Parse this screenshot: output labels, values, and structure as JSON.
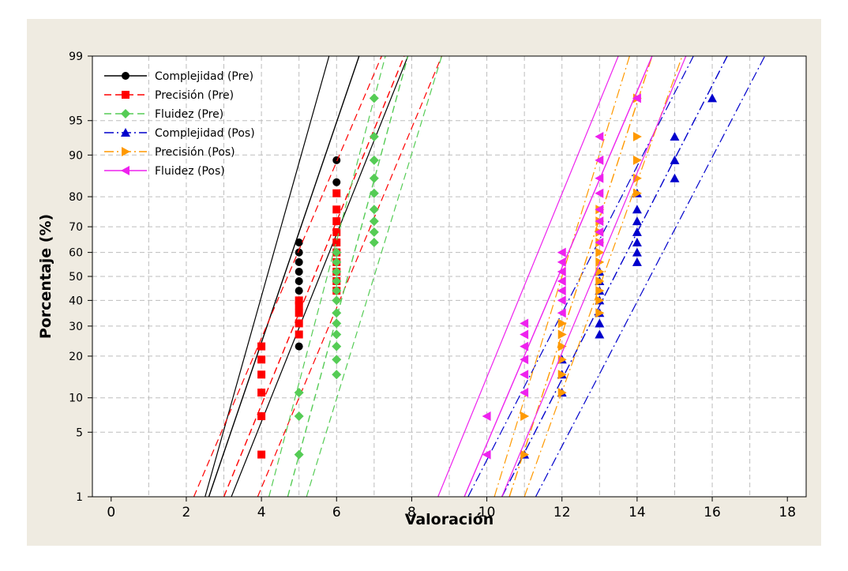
{
  "header": {
    "title": ""
  },
  "chart_data": {
    "type": "scatter",
    "title": "",
    "xlabel": "Valoración",
    "ylabel": "Porcentaje (%)",
    "xlim": [
      -0.5,
      18.5
    ],
    "x_ticks": [
      0,
      2,
      4,
      6,
      8,
      10,
      12,
      14,
      16,
      18
    ],
    "y_scale": "normal-probability",
    "ylim": [
      1,
      99
    ],
    "y_ticks": [
      1,
      5,
      10,
      20,
      30,
      40,
      50,
      60,
      70,
      80,
      90,
      95,
      99
    ],
    "grid": true,
    "legend_position": "top-left",
    "series": [
      {
        "name": "Complejidad (Pre)",
        "color": "#000000",
        "marker": "circle",
        "line": "solid",
        "points": [
          [
            5,
            23
          ],
          [
            5,
            44
          ],
          [
            5,
            48
          ],
          [
            5,
            52
          ],
          [
            5,
            56
          ],
          [
            5,
            60
          ],
          [
            5,
            64
          ],
          [
            6,
            84
          ],
          [
            6,
            89
          ]
        ],
        "fit": [
          [
            2.6,
            1
          ],
          [
            6.6,
            99
          ]
        ],
        "band_low": [
          [
            3.2,
            1
          ],
          [
            7.9,
            99
          ]
        ],
        "band_high": [
          [
            2.5,
            1
          ],
          [
            5.8,
            99
          ]
        ]
      },
      {
        "name": "Precisión (Pre)",
        "color": "#ff0000",
        "marker": "square",
        "line": "dashed",
        "points": [
          [
            4,
            3
          ],
          [
            4,
            7
          ],
          [
            4,
            11
          ],
          [
            4,
            15
          ],
          [
            4,
            19
          ],
          [
            4,
            23
          ],
          [
            5,
            27
          ],
          [
            5,
            31
          ],
          [
            5,
            35
          ],
          [
            5,
            38
          ],
          [
            5,
            40
          ],
          [
            6,
            44
          ],
          [
            6,
            48
          ],
          [
            6,
            52
          ],
          [
            6,
            56
          ],
          [
            6,
            60
          ],
          [
            6,
            64
          ],
          [
            6,
            68
          ],
          [
            6,
            72
          ],
          [
            6,
            76
          ],
          [
            6,
            81
          ]
        ],
        "fit": [
          [
            3.0,
            1
          ],
          [
            7.8,
            99
          ]
        ],
        "band_low": [
          [
            3.9,
            1
          ],
          [
            8.8,
            99
          ]
        ],
        "band_high": [
          [
            2.2,
            1
          ],
          [
            7.2,
            99
          ]
        ]
      },
      {
        "name": "Fluidez (Pre)",
        "color": "#55cc55",
        "marker": "diamond",
        "line": "dashed",
        "points": [
          [
            5,
            3
          ],
          [
            5,
            7
          ],
          [
            5,
            11
          ],
          [
            6,
            15
          ],
          [
            6,
            19
          ],
          [
            6,
            23
          ],
          [
            6,
            27
          ],
          [
            6,
            31
          ],
          [
            6,
            35
          ],
          [
            6,
            40
          ],
          [
            6,
            44
          ],
          [
            6,
            48
          ],
          [
            6,
            52
          ],
          [
            6,
            56
          ],
          [
            6,
            60
          ],
          [
            7,
            64
          ],
          [
            7,
            68
          ],
          [
            7,
            72
          ],
          [
            7,
            76
          ],
          [
            7,
            81
          ],
          [
            7,
            85
          ],
          [
            7,
            89
          ],
          [
            7,
            93
          ],
          [
            7,
            97
          ]
        ],
        "fit": [
          [
            4.7,
            1
          ],
          [
            7.9,
            99
          ]
        ],
        "band_low": [
          [
            5.2,
            1
          ],
          [
            8.8,
            99
          ]
        ],
        "band_high": [
          [
            4.2,
            1
          ],
          [
            7.3,
            99
          ]
        ]
      },
      {
        "name": "Complejidad (Pos)",
        "color": "#0000cc",
        "marker": "triangle-up",
        "line": "dashdot",
        "points": [
          [
            11,
            3
          ],
          [
            12,
            11
          ],
          [
            12,
            15
          ],
          [
            12,
            19
          ],
          [
            13,
            27
          ],
          [
            13,
            31
          ],
          [
            13,
            35
          ],
          [
            13,
            40
          ],
          [
            13,
            44
          ],
          [
            13,
            48
          ],
          [
            13,
            52
          ],
          [
            14,
            56
          ],
          [
            14,
            60
          ],
          [
            14,
            64
          ],
          [
            14,
            68
          ],
          [
            14,
            72
          ],
          [
            14,
            76
          ],
          [
            14,
            81
          ],
          [
            15,
            85
          ],
          [
            15,
            89
          ],
          [
            15,
            93
          ],
          [
            16,
            97
          ]
        ],
        "fit": [
          [
            10.4,
            1
          ],
          [
            16.4,
            99
          ]
        ],
        "band_low": [
          [
            11.3,
            1
          ],
          [
            17.4,
            99
          ]
        ],
        "band_high": [
          [
            9.5,
            1
          ],
          [
            15.5,
            99
          ]
        ]
      },
      {
        "name": "Precisión (Pos)",
        "color": "#ff9900",
        "marker": "triangle-right",
        "line": "dashdot",
        "points": [
          [
            11,
            3
          ],
          [
            11,
            7
          ],
          [
            12,
            11
          ],
          [
            12,
            15
          ],
          [
            12,
            19
          ],
          [
            12,
            23
          ],
          [
            12,
            27
          ],
          [
            12,
            31
          ],
          [
            13,
            35
          ],
          [
            13,
            40
          ],
          [
            13,
            44
          ],
          [
            13,
            48
          ],
          [
            13,
            52
          ],
          [
            13,
            56
          ],
          [
            13,
            60
          ],
          [
            13,
            64
          ],
          [
            13,
            68
          ],
          [
            13,
            72
          ],
          [
            13,
            76
          ],
          [
            14,
            81
          ],
          [
            14,
            85
          ],
          [
            14,
            89
          ],
          [
            14,
            93
          ],
          [
            14,
            97
          ]
        ],
        "fit": [
          [
            10.6,
            1
          ],
          [
            14.4,
            99
          ]
        ],
        "band_low": [
          [
            11.0,
            1
          ],
          [
            15.2,
            99
          ]
        ],
        "band_high": [
          [
            10.2,
            1
          ],
          [
            13.8,
            99
          ]
        ]
      },
      {
        "name": "Fluidez (Pos)",
        "color": "#ee22ee",
        "marker": "triangle-left",
        "line": "solid",
        "points": [
          [
            10,
            3
          ],
          [
            10,
            7
          ],
          [
            11,
            11
          ],
          [
            11,
            15
          ],
          [
            11,
            19
          ],
          [
            11,
            23
          ],
          [
            11,
            27
          ],
          [
            11,
            31
          ],
          [
            12,
            35
          ],
          [
            12,
            40
          ],
          [
            12,
            44
          ],
          [
            12,
            48
          ],
          [
            12,
            52
          ],
          [
            12,
            56
          ],
          [
            12,
            60
          ],
          [
            13,
            64
          ],
          [
            13,
            68
          ],
          [
            13,
            72
          ],
          [
            13,
            76
          ],
          [
            13,
            81
          ],
          [
            13,
            85
          ],
          [
            13,
            89
          ],
          [
            13,
            93
          ],
          [
            14,
            97
          ]
        ],
        "fit": [
          [
            9.4,
            1
          ],
          [
            14.4,
            99
          ]
        ],
        "band_low": [
          [
            10.4,
            1
          ],
          [
            15.3,
            99
          ]
        ],
        "band_high": [
          [
            8.7,
            1
          ],
          [
            13.5,
            99
          ]
        ]
      }
    ]
  }
}
